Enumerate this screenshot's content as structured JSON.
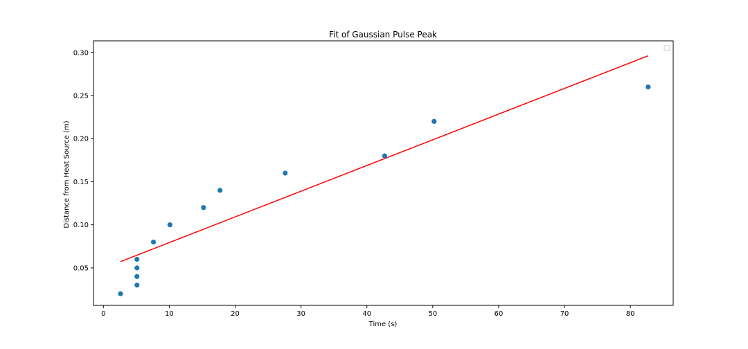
{
  "chart_data": {
    "type": "scatter",
    "title": "Fit of Gaussian Pulse Peak",
    "xlabel": "Time (s)",
    "ylabel": "Distance from Heat Source (m)",
    "xlim": [
      -1.5,
      86.5
    ],
    "ylim": [
      0.0065,
      0.3135
    ],
    "xticks": [
      0,
      10,
      20,
      30,
      40,
      50,
      60,
      70,
      80
    ],
    "yticks": [
      0.05,
      0.1,
      0.15,
      0.2,
      0.25,
      0.3
    ],
    "ytick_labels": [
      "0.05",
      "0.10",
      "0.15",
      "0.20",
      "0.25",
      "0.30"
    ],
    "grid": false,
    "legend": {
      "placement": "top-right",
      "entries": []
    },
    "series": [
      {
        "kind": "scatter",
        "color": "#1f77b4",
        "x": [
          2.6,
          5.1,
          5.1,
          5.1,
          5.1,
          7.6,
          10.1,
          15.2,
          17.7,
          27.6,
          42.7,
          50.2,
          82.7
        ],
        "y": [
          0.02,
          0.03,
          0.04,
          0.05,
          0.06,
          0.08,
          0.1,
          0.12,
          0.14,
          0.16,
          0.18,
          0.22,
          0.26
        ]
      },
      {
        "kind": "line",
        "color": "#ff0000",
        "x": [
          2.6,
          82.7
        ],
        "y": [
          0.0573,
          0.2962
        ]
      }
    ]
  }
}
